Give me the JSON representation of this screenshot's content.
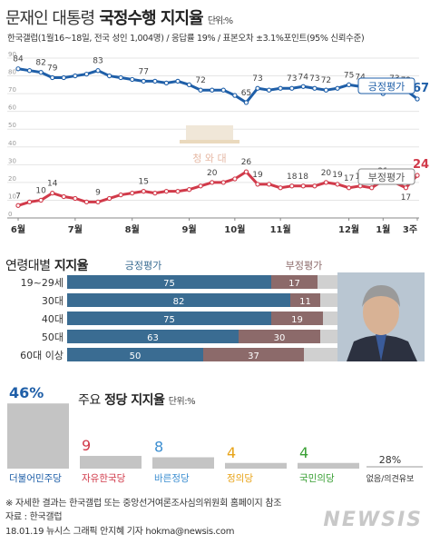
{
  "header": {
    "title_prefix": "문재인 대통령",
    "title_bold": "국정수행 지지율",
    "unit": "단위:%",
    "survey_note": "한국갤럽(1월16~18일, 전국 성인 1,004명) / 응답률 19% / 표본오차 ±3.1%포인트(95% 신뢰수준)"
  },
  "watermark": {
    "text": "청 와 대"
  },
  "colors": {
    "positive": "#1f5fa8",
    "negative": "#d13a4a",
    "bar_positive": "#3a6c92",
    "bar_negative": "#8c6a6a",
    "bar_other": "#d0d0d0",
    "grey": "#c4c4c4"
  },
  "chart_data": [
    {
      "type": "line",
      "title": "문재인 대통령 국정수행 지지율",
      "unit": "단위:%",
      "ylim": [
        0,
        90
      ],
      "yticks": [
        "90",
        "80",
        "70",
        "60",
        "50",
        "40",
        "30",
        "20",
        "10",
        "0"
      ],
      "x_labels": [
        "6월",
        "7월",
        "8월",
        "9월",
        "10월",
        "11월",
        "12월",
        "1월",
        "3주"
      ],
      "series": [
        {
          "name": "긍정평가",
          "values": [
            84,
            83,
            82,
            79,
            79,
            80,
            81,
            83,
            80,
            79,
            78,
            77,
            77,
            76,
            77,
            75,
            72,
            72,
            72,
            69,
            65,
            73,
            72,
            73,
            73,
            74,
            73,
            72,
            73,
            75,
            74,
            73,
            70,
            73,
            72,
            67
          ],
          "labels": [
            {
              "i": 0,
              "v": "84"
            },
            {
              "i": 2,
              "v": "82"
            },
            {
              "i": 3,
              "v": "79"
            },
            {
              "i": 7,
              "v": "83"
            },
            {
              "i": 11,
              "v": "77"
            },
            {
              "i": 16,
              "v": "72"
            },
            {
              "i": 20,
              "v": "65"
            },
            {
              "i": 21,
              "v": "73"
            },
            {
              "i": 24,
              "v": "73"
            },
            {
              "i": 25,
              "v": "74"
            },
            {
              "i": 26,
              "v": "73"
            },
            {
              "i": 27,
              "v": "72"
            },
            {
              "i": 29,
              "v": "75"
            },
            {
              "i": 30,
              "v": "74"
            },
            {
              "i": 32,
              "v": "70"
            },
            {
              "i": 33,
              "v": "73"
            },
            {
              "i": 34,
              "v": "72"
            },
            {
              "i": 35,
              "v": "67"
            }
          ]
        },
        {
          "name": "부정평가",
          "values": [
            7,
            9,
            10,
            14,
            12,
            11,
            9,
            9,
            11,
            13,
            14,
            15,
            14,
            15,
            15,
            16,
            18,
            20,
            20,
            22,
            26,
            19,
            19,
            17,
            18,
            18,
            18,
            20,
            19,
            17,
            18,
            17,
            21,
            20,
            17,
            24
          ],
          "labels": [
            {
              "i": 0,
              "v": "7"
            },
            {
              "i": 2,
              "v": "10"
            },
            {
              "i": 3,
              "v": "14"
            },
            {
              "i": 7,
              "v": "9"
            },
            {
              "i": 11,
              "v": "15"
            },
            {
              "i": 17,
              "v": "20"
            },
            {
              "i": 20,
              "v": "26"
            },
            {
              "i": 21,
              "v": "19"
            },
            {
              "i": 24,
              "v": "18"
            },
            {
              "i": 25,
              "v": "18"
            },
            {
              "i": 27,
              "v": "20"
            },
            {
              "i": 28,
              "v": "19"
            },
            {
              "i": 29,
              "v": "17"
            },
            {
              "i": 30,
              "v": "18"
            },
            {
              "i": 32,
              "v": "21"
            },
            {
              "i": 33,
              "v": "20"
            },
            {
              "i": 34,
              "v": "17"
            },
            {
              "i": 35,
              "v": "24"
            }
          ]
        }
      ]
    },
    {
      "type": "bar",
      "title": "연령대별 지지율",
      "categories": [
        "19~29세",
        "30대",
        "40대",
        "50대",
        "60대 이상"
      ],
      "series": [
        {
          "name": "긍정평가",
          "values": [
            75,
            82,
            75,
            63,
            50
          ]
        },
        {
          "name": "부정평가",
          "values": [
            17,
            11,
            19,
            30,
            37
          ]
        }
      ],
      "xlim": [
        0,
        100
      ]
    },
    {
      "type": "bar",
      "title": "주요 정당 지지율",
      "unit": "단위:%",
      "categories": [
        "더불어민주당",
        "자유한국당",
        "바른정당",
        "정의당",
        "국민의당",
        "없음/의견유보"
      ],
      "values": [
        46,
        9,
        8,
        4,
        4,
        28
      ],
      "value_labels": [
        "46%",
        "9",
        "8",
        "4",
        "4",
        "28%"
      ],
      "colors": [
        "#1f5fa8",
        "#d13a4a",
        "#3d8fd1",
        "#e8a317",
        "#3aa035",
        "#333333"
      ]
    }
  ],
  "age_section": {
    "title_prefix": "연령대별",
    "title_bold": "지지율",
    "legend_pos": "긍정평가",
    "legend_neg": "부정평가"
  },
  "party_section": {
    "title_prefix": "주요",
    "title_bold": "정당 지지율",
    "unit": "단위:%"
  },
  "footer": {
    "note": "※ 자세한 결과는 한국갤럽 또는 중앙선거여론조사심의위원회 홈페이지 참조",
    "source": "자료 : 한국갤럽",
    "credit": "18.01.19 뉴시스 그래픽 안지혜 기자 hokma@newsis.com",
    "logo": "NEWSIS"
  }
}
